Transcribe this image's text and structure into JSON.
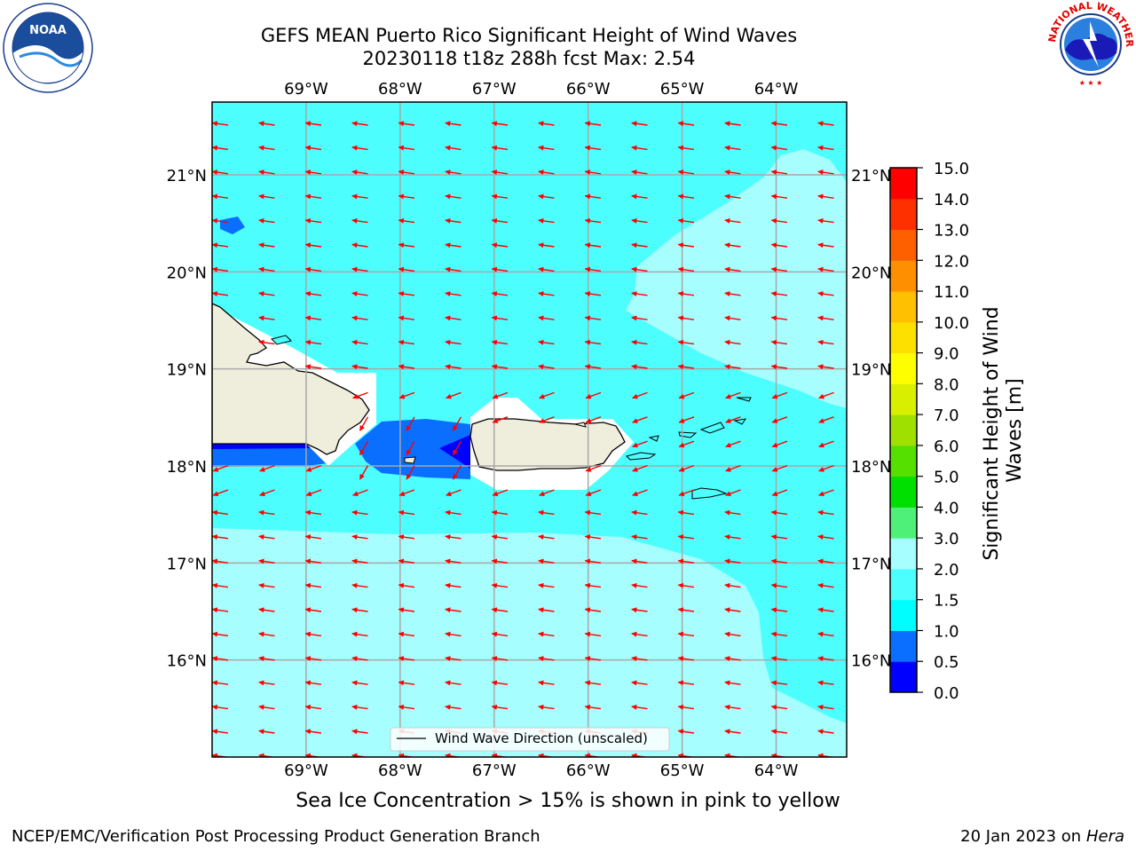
{
  "header": {
    "title_line1": "GEFS MEAN Puerto Rico Significant Height of Wind Waves",
    "title_line2": "20230118 t18z 288h fcst   Max: 2.54"
  },
  "logos": {
    "left": {
      "icon": "noaa-logo-icon",
      "text": "NOAA"
    },
    "right": {
      "icon": "nws-logo-icon"
    }
  },
  "map": {
    "lon_labels": [
      "69°W",
      "68°W",
      "67°W",
      "66°W",
      "65°W",
      "64°W"
    ],
    "lat_labels": [
      "21°N",
      "20°N",
      "19°N",
      "18°N",
      "17°N",
      "16°N"
    ],
    "lon_values": [
      -69,
      -68,
      -67,
      -66,
      -65,
      -64
    ],
    "lat_values": [
      21,
      20,
      19,
      18,
      17,
      16
    ],
    "lon_range": [
      -70.0,
      -63.25
    ],
    "lat_range": [
      15.0,
      21.75
    ],
    "legend_label": "Wind Wave Direction (unscaled)",
    "land_color": "#efeedc",
    "ocean_color_low": "#4dfefe",
    "ocean_color_mid": "#a6fefe",
    "arrow_color": "#ff0000"
  },
  "colorbar": {
    "label": "Significant Height of Wind Waves [m]",
    "label_line1": "Significant Height of Wind",
    "label_line2": "Waves [m]",
    "ticks": [
      "0.0",
      "0.5",
      "1.0",
      "1.5",
      "2.0",
      "3.0",
      "4.0",
      "5.0",
      "6.0",
      "7.0",
      "8.0",
      "9.0",
      "10.0",
      "11.0",
      "12.0",
      "13.0",
      "14.0",
      "15.0"
    ],
    "colors": [
      "#0000fe",
      "#0a6efe",
      "#00fefe",
      "#4dfefe",
      "#a6fefe",
      "#4ff07a",
      "#00e000",
      "#55e000",
      "#a0e000",
      "#d8f000",
      "#fefe00",
      "#fee000",
      "#fec000",
      "#fe9000",
      "#fe6000",
      "#fe3000",
      "#fe0000"
    ]
  },
  "subtitle": "Sea Ice Concentration > 15% is shown in pink to yellow",
  "footer": {
    "left": "NCEP/EMC/Verification Post Processing Product Generation Branch",
    "right_date": "20 Jan 2023 on ",
    "right_machine": "Hera"
  }
}
